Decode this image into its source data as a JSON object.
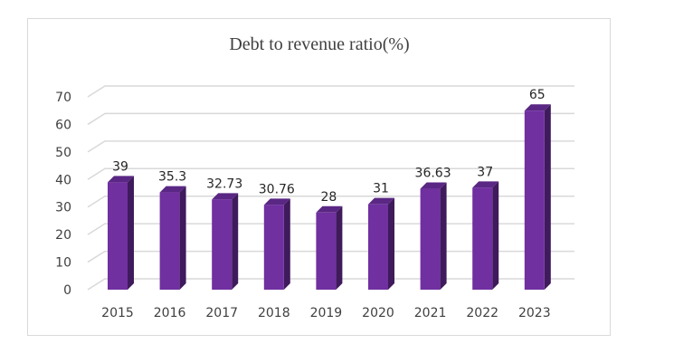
{
  "chart_data": {
    "type": "bar",
    "title": "Debt to revenue ratio(%)",
    "xlabel": "",
    "ylabel": "",
    "categories": [
      "2015",
      "2016",
      "2017",
      "2018",
      "2019",
      "2020",
      "2021",
      "2022",
      "2023"
    ],
    "values": [
      39,
      35.3,
      32.73,
      30.76,
      28,
      31,
      36.63,
      37,
      65
    ],
    "data_labels": [
      "39",
      "35.3",
      "32.73",
      "30.76",
      "28",
      "31",
      "36.63",
      "37",
      "65"
    ],
    "ylim": [
      0,
      70
    ],
    "yticks": [
      0,
      10,
      20,
      30,
      40,
      50,
      60,
      70
    ],
    "grid": true,
    "style": "3d-column",
    "colors": {
      "bar_front": "#7030A0",
      "bar_side": "#3F1A5C",
      "bar_top": "#5A2784",
      "grid": "#d9d9d9"
    }
  }
}
